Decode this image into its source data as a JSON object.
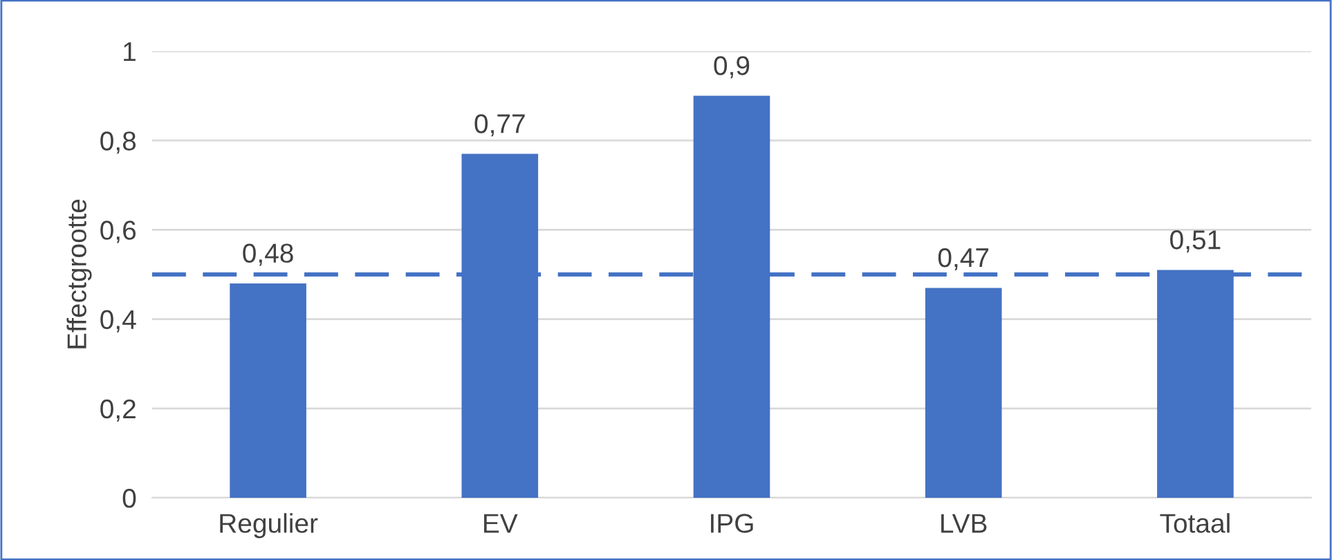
{
  "chart_data": {
    "type": "bar",
    "ylabel": "Effectgrootte",
    "categories": [
      "Regulier",
      "EV",
      "IPG",
      "LVB",
      "Totaal"
    ],
    "values": [
      0.48,
      0.77,
      0.9,
      0.47,
      0.51
    ],
    "value_labels": [
      "0,48",
      "0,77",
      "0,9",
      "0,47",
      "0,51"
    ],
    "color": "#4472c4",
    "ylim": [
      0,
      1
    ],
    "yticks": [
      {
        "value": 0,
        "label": "0"
      },
      {
        "value": 0.2,
        "label": "0,2"
      },
      {
        "value": 0.4,
        "label": "0,4"
      },
      {
        "value": 0.6,
        "label": "0,6"
      },
      {
        "value": 0.8,
        "label": "0,8"
      },
      {
        "value": 1,
        "label": "1"
      }
    ],
    "grid": "y",
    "ref_lines": [
      {
        "axis": "y",
        "value": 0.5,
        "color": "#4472c4",
        "line_style": "dashed"
      }
    ]
  }
}
